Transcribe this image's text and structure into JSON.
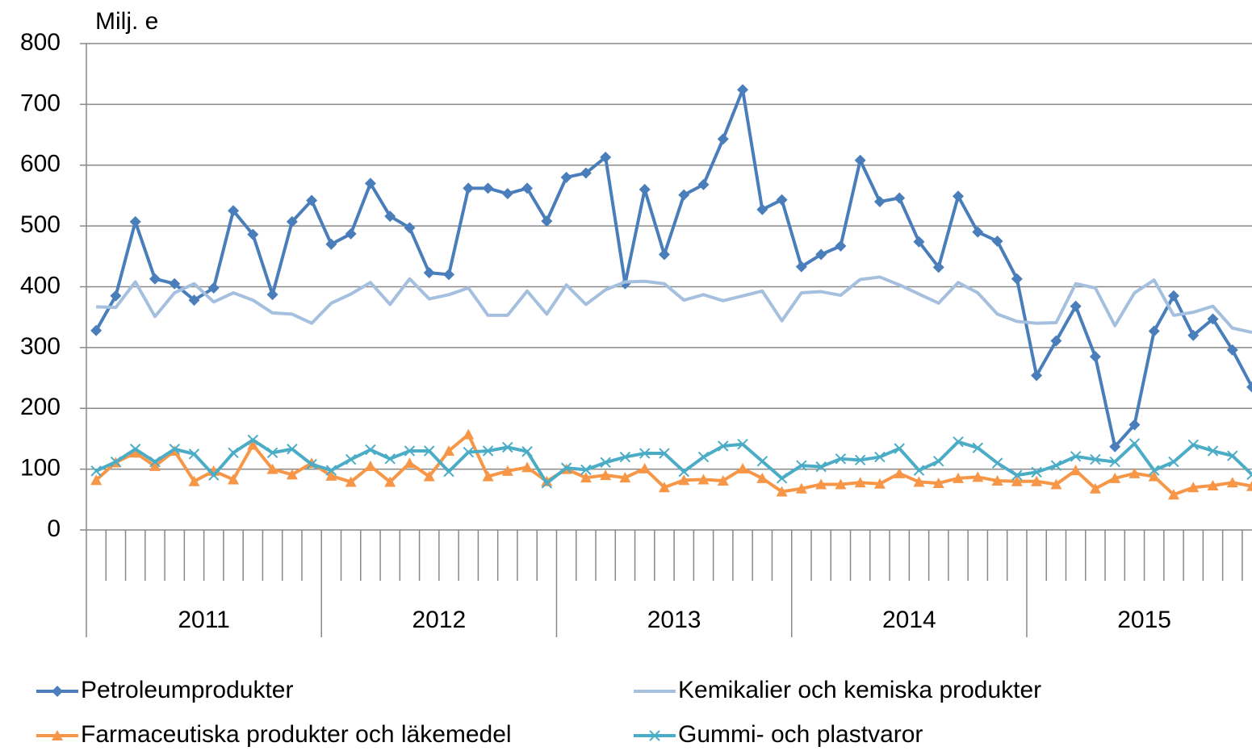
{
  "chart_data": {
    "type": "line",
    "y_label": "Milj. e",
    "categories": [
      null,
      null,
      null,
      null,
      null,
      null,
      null,
      null,
      null,
      null,
      null,
      null,
      null,
      null,
      null,
      null,
      null,
      null,
      null,
      null,
      null,
      null,
      null,
      null,
      null,
      null,
      null,
      null,
      null,
      null,
      null,
      null,
      null,
      null,
      null,
      null,
      null,
      null,
      null,
      null,
      null,
      null,
      null,
      null,
      null,
      null,
      null,
      null,
      null,
      null,
      null,
      null,
      null,
      null,
      null,
      null,
      null,
      null,
      null,
      null
    ],
    "groups": [
      "2011",
      "2012",
      "2013",
      "2014",
      "2015"
    ],
    "ylim": [
      0,
      800
    ],
    "yticks": [
      0,
      100,
      200,
      300,
      400,
      500,
      600,
      700,
      800
    ],
    "grid": true,
    "series": [
      {
        "name": "Petroleumprodukter",
        "color": "#4a7ebb",
        "marker": "diamond",
        "values": [
          328,
          385,
          507,
          413,
          405,
          378,
          398,
          525,
          486,
          387,
          507,
          542,
          470,
          487,
          570,
          516,
          497,
          423,
          420,
          562,
          562,
          553,
          562,
          508,
          580,
          587,
          613,
          405,
          560,
          453,
          551,
          568,
          643,
          724,
          527,
          543,
          433,
          453,
          467,
          608,
          540,
          546,
          474,
          432,
          549,
          490,
          475,
          413,
          254,
          311,
          368,
          285,
          137,
          173,
          327,
          385,
          320,
          347,
          296,
          235
        ]
      },
      {
        "name": "Kemikalier och kemiska produkter",
        "color": "#a5bfdf",
        "marker": "none",
        "values": [
          367,
          366,
          408,
          351,
          390,
          405,
          375,
          390,
          378,
          357,
          355,
          340,
          373,
          388,
          407,
          371,
          413,
          380,
          387,
          398,
          353,
          353,
          393,
          355,
          403,
          371,
          395,
          408,
          409,
          405,
          378,
          387,
          377,
          385,
          393,
          344,
          390,
          392,
          386,
          412,
          416,
          403,
          388,
          373,
          407,
          390,
          355,
          343,
          340,
          341,
          405,
          398,
          336,
          390,
          411,
          353,
          358,
          368,
          332,
          325
        ]
      },
      {
        "name": "Farmaceutiska produkter och läkemedel",
        "color": "#f79646",
        "marker": "triangle",
        "values": [
          82,
          111,
          127,
          105,
          130,
          80,
          97,
          83,
          140,
          100,
          91,
          110,
          89,
          79,
          105,
          79,
          110,
          88,
          130,
          157,
          88,
          97,
          103,
          80,
          100,
          86,
          90,
          86,
          101,
          70,
          82,
          83,
          81,
          101,
          85,
          63,
          68,
          75,
          75,
          78,
          76,
          93,
          79,
          77,
          85,
          87,
          81,
          80,
          80,
          75,
          98,
          68,
          85,
          93,
          88,
          58,
          70,
          73,
          78,
          72
        ]
      },
      {
        "name": "Gummi- och plastvaror",
        "color": "#4bacc6",
        "marker": "x",
        "values": [
          97,
          112,
          133,
          112,
          133,
          125,
          90,
          127,
          148,
          127,
          133,
          108,
          98,
          116,
          132,
          117,
          130,
          130,
          96,
          128,
          130,
          136,
          129,
          77,
          102,
          99,
          111,
          120,
          126,
          126,
          96,
          120,
          138,
          141,
          113,
          85,
          106,
          104,
          117,
          115,
          120,
          134,
          98,
          113,
          145,
          135,
          110,
          90,
          95,
          106,
          121,
          116,
          112,
          142,
          98,
          112,
          140,
          130,
          122,
          91
        ]
      }
    ]
  }
}
